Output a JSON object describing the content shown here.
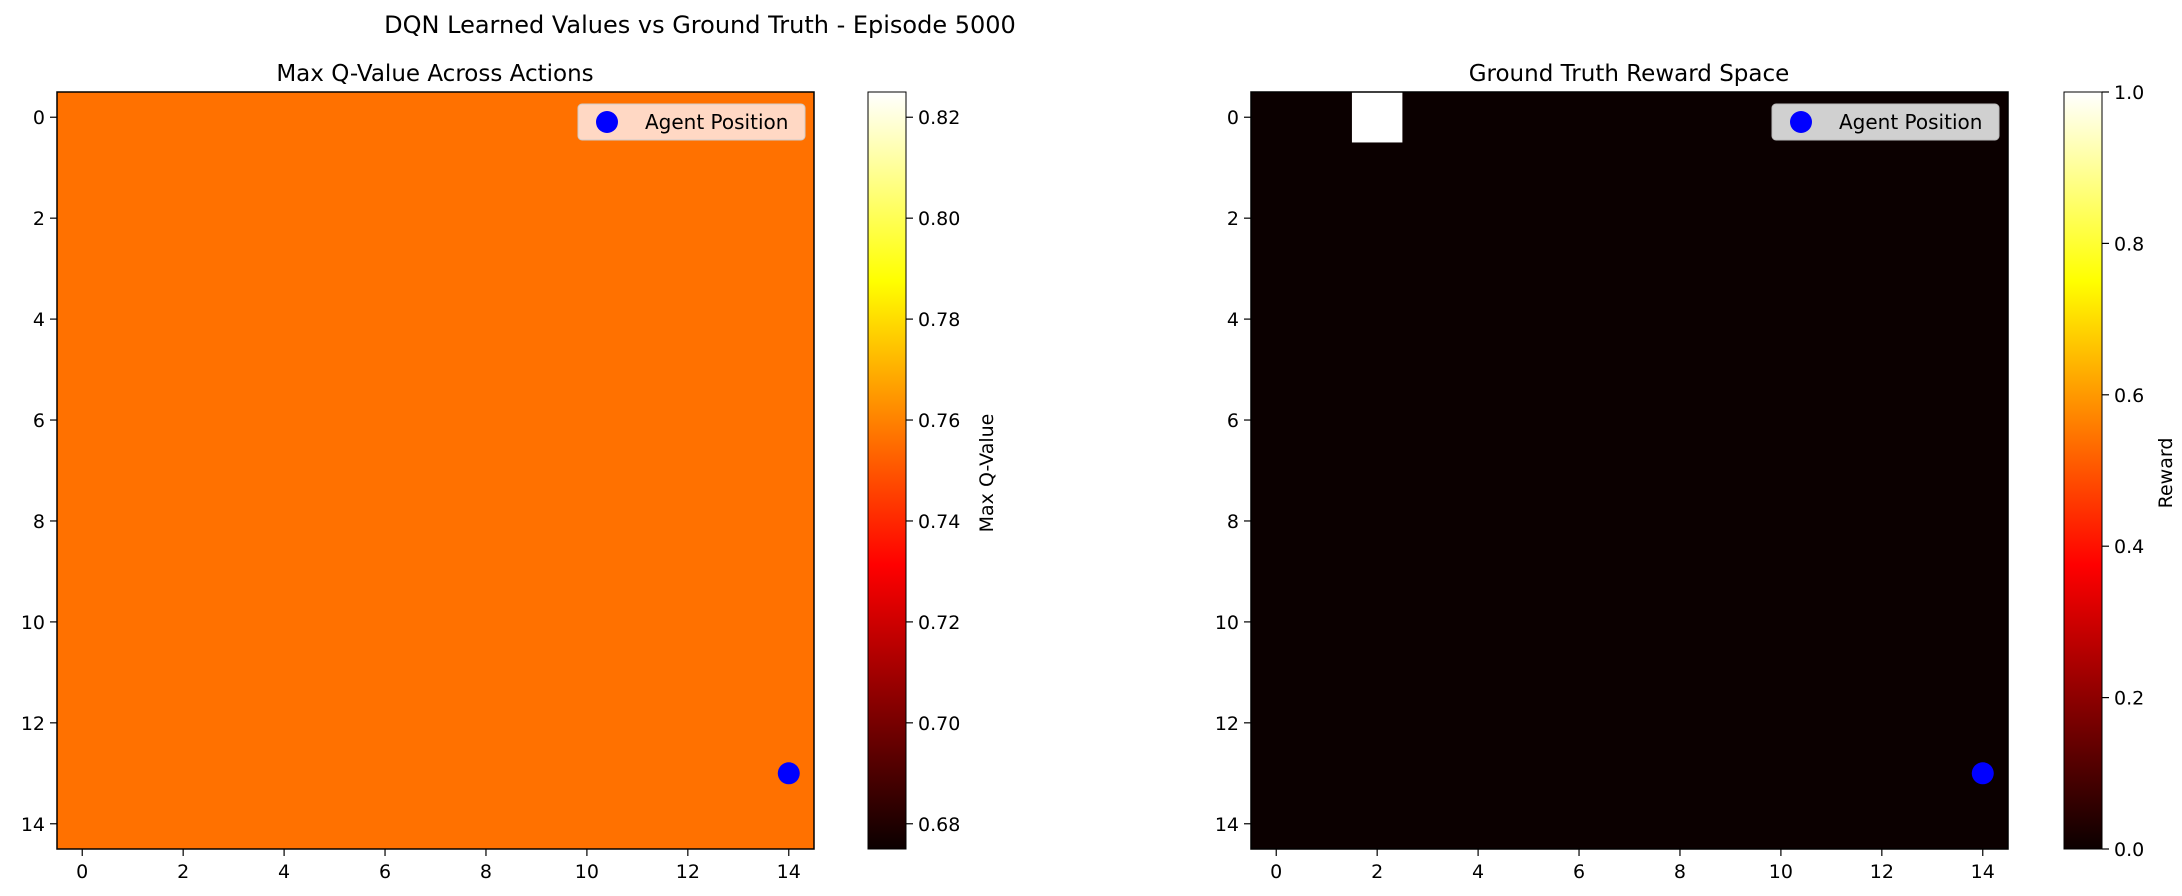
{
  "chart_data": {
    "suptitle": "DQN Learned Values vs Ground Truth - Episode 5000",
    "panels": [
      {
        "type": "heatmap",
        "title": "Max Q-Value Across Actions",
        "grid_size": [
          15,
          15
        ],
        "fill_mode": "uniform",
        "uniform_value": 0.755,
        "colormap": "hot",
        "vmin": 0.675,
        "vmax": 0.825,
        "x_ticks": [
          0,
          2,
          4,
          6,
          8,
          10,
          12,
          14
        ],
        "y_ticks": [
          0,
          2,
          4,
          6,
          8,
          10,
          12,
          14
        ],
        "colorbar_label": "Max Q-Value",
        "colorbar_ticks": [
          "0.68",
          "0.70",
          "0.72",
          "0.74",
          "0.76",
          "0.78",
          "0.80",
          "0.82"
        ],
        "agent": {
          "x": 14,
          "y": 13,
          "color": "#0000ff"
        },
        "legend": {
          "label": "Agent Position",
          "loc": "upper right",
          "bg": "#ffd8c4"
        }
      },
      {
        "type": "heatmap",
        "title": "Ground Truth Reward Space",
        "grid_size": [
          15,
          15
        ],
        "fill_mode": "cells",
        "background_value": 0.0,
        "cells": [
          {
            "x": 2,
            "y": 0,
            "value": 1.0
          }
        ],
        "colormap": "hot",
        "vmin": 0.0,
        "vmax": 1.0,
        "x_ticks": [
          0,
          2,
          4,
          6,
          8,
          10,
          12,
          14
        ],
        "y_ticks": [
          0,
          2,
          4,
          6,
          8,
          10,
          12,
          14
        ],
        "colorbar_label": "Reward",
        "colorbar_ticks": [
          "0.0",
          "0.2",
          "0.4",
          "0.6",
          "0.8",
          "1.0"
        ],
        "agent": {
          "x": 14,
          "y": 13,
          "color": "#0000ff"
        },
        "legend": {
          "label": "Agent Position",
          "loc": "upper right",
          "bg": "#d0d0d0"
        }
      }
    ]
  }
}
